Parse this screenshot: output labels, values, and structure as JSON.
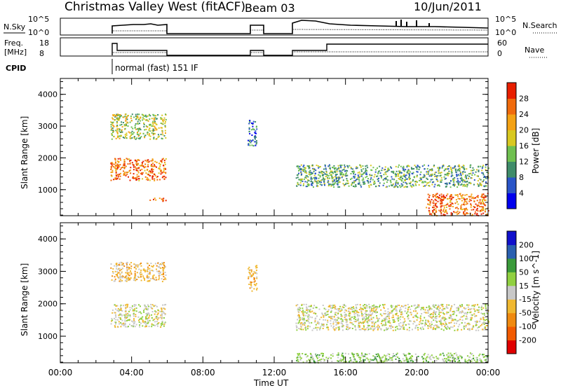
{
  "header": {
    "station": "Christmas Valley West (fitACF)",
    "beam": "Beam 03",
    "date": "10/Jun/2011"
  },
  "strip_labels": {
    "nsky": "N.Sky",
    "nsky_ticks": [
      "10^5",
      "10^0"
    ],
    "freq_line1": "Freq.",
    "freq_line2": "[MHz]",
    "freq_ticks": [
      "18",
      "8"
    ],
    "cpid": "CPID",
    "cpid_text": "normal (fast) 151 IF",
    "nsearch": "N.Search",
    "nsearch_ticks": [
      "10^5",
      "10^0"
    ],
    "nave": "Nave",
    "nave_ticks": [
      "60",
      "0"
    ]
  },
  "colors": {
    "power_scale": [
      "#0000ee",
      "#2a55c8",
      "#3f8c6a",
      "#6fc050",
      "#d8c820",
      "#f4a214",
      "#f06a0c",
      "#e81e00"
    ],
    "velocity_scale": [
      "#e00000",
      "#f25a00",
      "#f08a10",
      "#f0b830",
      "#c8c8c8",
      "#90d040",
      "#3a9a3a",
      "#2a60b0",
      "#1010cc"
    ]
  },
  "chart_data": [
    {
      "type": "heatmap",
      "title": "",
      "ylabel": "Slant Range [km]",
      "xlabel": "",
      "colorbar_label": "Power [dB]",
      "colorbar_ticks": [
        "28",
        "24",
        "20",
        "16",
        "12",
        "8",
        "4"
      ],
      "x_range_hours": [
        0,
        24
      ],
      "ylim": [
        180,
        4500
      ],
      "yticks": [
        "4000",
        "3000",
        "2000",
        "1000"
      ],
      "echo_regions": [
        {
          "t_start": 2.8,
          "t_end": 5.9,
          "r_start": 1300,
          "r_end": 2000,
          "power_db": 26
        },
        {
          "t_start": 2.8,
          "t_end": 5.9,
          "r_start": 2600,
          "r_end": 3400,
          "power_db": 16
        },
        {
          "t_start": 5.0,
          "t_end": 5.9,
          "r_start": 650,
          "r_end": 750,
          "power_db": 26
        },
        {
          "t_start": 10.5,
          "t_end": 11.0,
          "r_start": 2400,
          "r_end": 3200,
          "power_db": 8
        },
        {
          "t_start": 13.2,
          "t_end": 24.0,
          "r_start": 1100,
          "r_end": 1800,
          "power_db": 12
        },
        {
          "t_start": 20.5,
          "t_end": 24.0,
          "r_start": 200,
          "r_end": 900,
          "power_db": 26
        }
      ]
    },
    {
      "type": "heatmap",
      "title": "",
      "ylabel": "Slant Range [km]",
      "xlabel": "Time UT",
      "colorbar_label": "Velocity [m s^-1]",
      "colorbar_ticks": [
        "200",
        "100",
        "50",
        "15",
        "-15",
        "-50",
        "-100",
        "-200"
      ],
      "x_range_hours": [
        0,
        24
      ],
      "xticks": [
        "00:00",
        "04:00",
        "08:00",
        "12:00",
        "16:00",
        "20:00",
        "00:00"
      ],
      "ylim": [
        180,
        4500
      ],
      "yticks": [
        "4000",
        "3000",
        "2000",
        "1000"
      ],
      "echo_regions": [
        {
          "t_start": 2.8,
          "t_end": 5.9,
          "r_start": 1300,
          "r_end": 2000,
          "velocity": 0
        },
        {
          "t_start": 2.8,
          "t_end": 5.9,
          "r_start": 2700,
          "r_end": 3300,
          "velocity": -30
        },
        {
          "t_start": 10.5,
          "t_end": 11.0,
          "r_start": 2400,
          "r_end": 3200,
          "velocity": -40
        },
        {
          "t_start": 13.2,
          "t_end": 24.0,
          "r_start": 1200,
          "r_end": 2000,
          "velocity": 0
        },
        {
          "t_start": 13.2,
          "t_end": 24.0,
          "r_start": 200,
          "r_end": 500,
          "velocity": 30
        }
      ]
    }
  ]
}
